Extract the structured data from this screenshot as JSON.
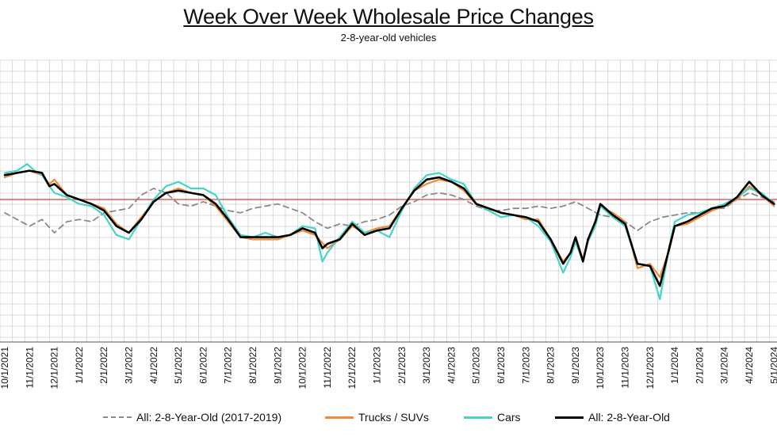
{
  "chart_data": {
    "type": "line",
    "title": "Week Over Week Wholesale Price Changes",
    "subtitle": "2-8-year-old vehicles",
    "xlabel": "",
    "ylabel": "",
    "x_tick_labels": [
      "10/1/2021",
      "11/1/2021",
      "12/1/2021",
      "1/1/2022",
      "2/1/2022",
      "3/1/2022",
      "4/1/2022",
      "5/1/2022",
      "6/1/2022",
      "7/1/2022",
      "8/1/2022",
      "9/1/2022",
      "10/1/2022",
      "11/1/2022",
      "12/1/2022",
      "1/1/2023",
      "2/1/2023",
      "3/1/2023",
      "4/1/2023",
      "5/1/2023",
      "6/1/2023",
      "7/1/2023",
      "8/1/2023",
      "9/1/2023",
      "10/1/2023",
      "11/1/2023",
      "12/1/2023",
      "1/1/2024",
      "2/1/2024",
      "3/1/2024",
      "4/1/2024",
      "5/1/2024"
    ],
    "y_tick_labels": [],
    "zero_line": true,
    "grid": true,
    "legend_position": "bottom",
    "series": [
      {
        "name": "All: 2-8-Year-Old (2017-2019)",
        "color": "#8a8a8a",
        "dash": "dashed",
        "points": [
          [
            0,
            -0.6
          ],
          [
            0.5,
            -0.9
          ],
          [
            1,
            -1.2
          ],
          [
            1.5,
            -0.9
          ],
          [
            2,
            -1.5
          ],
          [
            2.5,
            -1.0
          ],
          [
            3,
            -0.9
          ],
          [
            3.5,
            -1.0
          ],
          [
            4,
            -0.6
          ],
          [
            4.5,
            -0.5
          ],
          [
            5,
            -0.4
          ],
          [
            5.5,
            0.2
          ],
          [
            6,
            0.5
          ],
          [
            6.5,
            0.3
          ],
          [
            7,
            -0.2
          ],
          [
            7.5,
            -0.3
          ],
          [
            8,
            -0.1
          ],
          [
            8.5,
            -0.3
          ],
          [
            9,
            -0.5
          ],
          [
            9.5,
            -0.6
          ],
          [
            10,
            -0.4
          ],
          [
            10.5,
            -0.3
          ],
          [
            11,
            -0.2
          ],
          [
            11.5,
            -0.4
          ],
          [
            12,
            -0.6
          ],
          [
            12.5,
            -1.0
          ],
          [
            13,
            -1.3
          ],
          [
            13.5,
            -1.1
          ],
          [
            14,
            -1.2
          ],
          [
            14.5,
            -1.0
          ],
          [
            15,
            -0.9
          ],
          [
            15.5,
            -0.7
          ],
          [
            16,
            -0.3
          ],
          [
            16.5,
            -0.1
          ],
          [
            17,
            0.2
          ],
          [
            17.5,
            0.3
          ],
          [
            18,
            0.2
          ],
          [
            18.5,
            0.0
          ],
          [
            19,
            -0.3
          ],
          [
            19.5,
            -0.5
          ],
          [
            20,
            -0.5
          ],
          [
            20.5,
            -0.4
          ],
          [
            21,
            -0.4
          ],
          [
            21.5,
            -0.3
          ],
          [
            22,
            -0.4
          ],
          [
            22.5,
            -0.3
          ],
          [
            23,
            -0.1
          ],
          [
            23.5,
            -0.4
          ],
          [
            24,
            -0.7
          ],
          [
            24.5,
            -0.8
          ],
          [
            25,
            -1.0
          ],
          [
            25.5,
            -1.4
          ],
          [
            26,
            -1.0
          ],
          [
            26.5,
            -0.8
          ],
          [
            27,
            -0.7
          ],
          [
            27.5,
            -0.6
          ],
          [
            28,
            -0.6
          ],
          [
            28.5,
            -0.4
          ],
          [
            29,
            -0.4
          ],
          [
            29.5,
            0.0
          ],
          [
            30,
            0.3
          ],
          [
            30.5,
            0.1
          ],
          [
            31,
            -0.1
          ]
        ]
      },
      {
        "name": "Trucks / SUVs",
        "color": "#ee8a3a",
        "dash": "solid",
        "points": [
          [
            0,
            1.0
          ],
          [
            0.5,
            1.2
          ],
          [
            1,
            1.3
          ],
          [
            1.5,
            1.1
          ],
          [
            1.8,
            0.7
          ],
          [
            2,
            0.9
          ],
          [
            2.5,
            0.2
          ],
          [
            3,
            0.0
          ],
          [
            3.5,
            -0.2
          ],
          [
            4,
            -0.4
          ],
          [
            4.5,
            -1.1
          ],
          [
            5,
            -1.5
          ],
          [
            5.5,
            -0.8
          ],
          [
            6,
            -0.1
          ],
          [
            6.5,
            0.3
          ],
          [
            7,
            0.5
          ],
          [
            7.5,
            0.3
          ],
          [
            8,
            0.2
          ],
          [
            8.5,
            -0.3
          ],
          [
            9,
            -1.0
          ],
          [
            9.5,
            -1.7
          ],
          [
            10,
            -1.8
          ],
          [
            10.5,
            -1.8
          ],
          [
            11,
            -1.8
          ],
          [
            11.5,
            -1.6
          ],
          [
            12,
            -1.4
          ],
          [
            12.5,
            -1.6
          ],
          [
            13,
            -2.2
          ],
          [
            13.5,
            -1.8
          ],
          [
            14,
            -1.2
          ],
          [
            14.5,
            -1.5
          ],
          [
            15,
            -1.3
          ],
          [
            15.5,
            -1.2
          ],
          [
            16,
            -0.4
          ],
          [
            16.5,
            0.4
          ],
          [
            17,
            0.7
          ],
          [
            17.5,
            0.9
          ],
          [
            18,
            0.8
          ],
          [
            18.5,
            0.4
          ],
          [
            19,
            -0.2
          ],
          [
            19.5,
            -0.4
          ],
          [
            20,
            -0.6
          ],
          [
            20.5,
            -0.7
          ],
          [
            21,
            -0.9
          ],
          [
            21.5,
            -0.9
          ],
          [
            22,
            -1.8
          ],
          [
            22.5,
            -2.8
          ],
          [
            22.8,
            -2.4
          ],
          [
            23,
            -1.7
          ],
          [
            23.3,
            -2.7
          ],
          [
            23.5,
            -1.8
          ],
          [
            23.8,
            -1.0
          ],
          [
            24,
            -0.2
          ],
          [
            24.3,
            -0.5
          ],
          [
            24.5,
            -0.6
          ],
          [
            25,
            -1.0
          ],
          [
            25.5,
            -3.1
          ],
          [
            26,
            -2.9
          ],
          [
            26.4,
            -3.5
          ],
          [
            26.8,
            -2.2
          ],
          [
            27,
            -1.2
          ],
          [
            27.5,
            -1.1
          ],
          [
            28,
            -0.8
          ],
          [
            28.5,
            -0.5
          ],
          [
            29,
            -0.3
          ],
          [
            29.5,
            0.0
          ],
          [
            30,
            0.6
          ],
          [
            30.5,
            0.2
          ],
          [
            31,
            -0.3
          ]
        ]
      },
      {
        "name": "Cars",
        "color": "#49d3c6",
        "dash": "solid",
        "points": [
          [
            0,
            1.2
          ],
          [
            0.5,
            1.3
          ],
          [
            0.9,
            1.6
          ],
          [
            1.2,
            1.3
          ],
          [
            1.5,
            1.1
          ],
          [
            1.8,
            0.6
          ],
          [
            2,
            0.3
          ],
          [
            2.5,
            0.1
          ],
          [
            3,
            -0.2
          ],
          [
            3.5,
            -0.3
          ],
          [
            4,
            -0.7
          ],
          [
            4.5,
            -1.6
          ],
          [
            5,
            -1.8
          ],
          [
            5.5,
            -0.9
          ],
          [
            6,
            0.0
          ],
          [
            6.5,
            0.6
          ],
          [
            7,
            0.8
          ],
          [
            7.5,
            0.5
          ],
          [
            8,
            0.5
          ],
          [
            8.5,
            0.2
          ],
          [
            9,
            -0.8
          ],
          [
            9.5,
            -1.6
          ],
          [
            10,
            -1.7
          ],
          [
            10.5,
            -1.5
          ],
          [
            11,
            -1.7
          ],
          [
            11.5,
            -1.6
          ],
          [
            12,
            -1.2
          ],
          [
            12.5,
            -1.3
          ],
          [
            12.8,
            -2.8
          ],
          [
            13,
            -2.4
          ],
          [
            13.5,
            -1.7
          ],
          [
            14,
            -1.0
          ],
          [
            14.5,
            -1.5
          ],
          [
            15,
            -1.4
          ],
          [
            15.5,
            -1.7
          ],
          [
            16,
            -0.5
          ],
          [
            16.5,
            0.5
          ],
          [
            17,
            1.1
          ],
          [
            17.5,
            1.2
          ],
          [
            18,
            0.9
          ],
          [
            18.5,
            0.7
          ],
          [
            19,
            -0.2
          ],
          [
            19.5,
            -0.5
          ],
          [
            20,
            -0.8
          ],
          [
            20.5,
            -0.7
          ],
          [
            21,
            -0.8
          ],
          [
            21.5,
            -1.2
          ],
          [
            22,
            -1.9
          ],
          [
            22.5,
            -3.3
          ],
          [
            22.8,
            -2.6
          ],
          [
            23,
            -1.9
          ],
          [
            23.3,
            -2.8
          ],
          [
            23.5,
            -1.9
          ],
          [
            23.8,
            -1.2
          ],
          [
            24,
            -0.3
          ],
          [
            24.3,
            -0.6
          ],
          [
            24.5,
            -0.8
          ],
          [
            25,
            -1.2
          ],
          [
            25.5,
            -2.9
          ],
          [
            26,
            -3.0
          ],
          [
            26.4,
            -4.5
          ],
          [
            26.8,
            -2.0
          ],
          [
            27,
            -1.0
          ],
          [
            27.5,
            -0.7
          ],
          [
            28,
            -0.6
          ],
          [
            28.5,
            -0.4
          ],
          [
            29,
            -0.2
          ],
          [
            29.5,
            0.1
          ],
          [
            30,
            0.5
          ],
          [
            30.5,
            0.3
          ],
          [
            31,
            -0.2
          ]
        ]
      },
      {
        "name": "All: 2-8-Year-Old",
        "color": "#000000",
        "dash": "solid",
        "points": [
          [
            0,
            1.1
          ],
          [
            0.5,
            1.2
          ],
          [
            1,
            1.3
          ],
          [
            1.5,
            1.2
          ],
          [
            1.8,
            0.6
          ],
          [
            2,
            0.7
          ],
          [
            2.5,
            0.2
          ],
          [
            3,
            0.0
          ],
          [
            3.5,
            -0.2
          ],
          [
            4,
            -0.5
          ],
          [
            4.5,
            -1.2
          ],
          [
            5,
            -1.5
          ],
          [
            5.5,
            -0.9
          ],
          [
            6,
            -0.1
          ],
          [
            6.5,
            0.3
          ],
          [
            7,
            0.4
          ],
          [
            7.5,
            0.3
          ],
          [
            8,
            0.2
          ],
          [
            8.5,
            -0.2
          ],
          [
            9,
            -0.9
          ],
          [
            9.5,
            -1.7
          ],
          [
            10,
            -1.7
          ],
          [
            10.5,
            -1.7
          ],
          [
            11,
            -1.7
          ],
          [
            11.5,
            -1.6
          ],
          [
            12,
            -1.3
          ],
          [
            12.5,
            -1.5
          ],
          [
            12.8,
            -2.2
          ],
          [
            13,
            -2.0
          ],
          [
            13.5,
            -1.8
          ],
          [
            14,
            -1.1
          ],
          [
            14.5,
            -1.6
          ],
          [
            15,
            -1.4
          ],
          [
            15.5,
            -1.3
          ],
          [
            16,
            -0.4
          ],
          [
            16.5,
            0.4
          ],
          [
            17,
            0.9
          ],
          [
            17.5,
            1.0
          ],
          [
            18,
            0.8
          ],
          [
            18.5,
            0.5
          ],
          [
            19,
            -0.2
          ],
          [
            19.5,
            -0.4
          ],
          [
            20,
            -0.6
          ],
          [
            20.5,
            -0.7
          ],
          [
            21,
            -0.8
          ],
          [
            21.5,
            -1.0
          ],
          [
            22,
            -1.8
          ],
          [
            22.5,
            -2.9
          ],
          [
            22.8,
            -2.4
          ],
          [
            23,
            -1.7
          ],
          [
            23.3,
            -2.8
          ],
          [
            23.5,
            -1.8
          ],
          [
            23.8,
            -1.0
          ],
          [
            24,
            -0.2
          ],
          [
            24.3,
            -0.5
          ],
          [
            24.5,
            -0.7
          ],
          [
            25,
            -1.1
          ],
          [
            25.5,
            -2.9
          ],
          [
            26,
            -3.0
          ],
          [
            26.4,
            -3.9
          ],
          [
            26.8,
            -2.1
          ],
          [
            27,
            -1.2
          ],
          [
            27.5,
            -1.0
          ],
          [
            28,
            -0.7
          ],
          [
            28.5,
            -0.4
          ],
          [
            29,
            -0.3
          ],
          [
            29.5,
            0.1
          ],
          [
            30,
            0.8
          ],
          [
            30.5,
            0.2
          ],
          [
            31,
            -0.2
          ]
        ]
      }
    ]
  },
  "legend": {
    "items": [
      {
        "label": "All: 2-8-Year-Old (2017-2019)",
        "color": "#8a8a8a",
        "style": "dashed"
      },
      {
        "label": "Trucks / SUVs",
        "color": "#ee8a3a",
        "style": "solid"
      },
      {
        "label": "Cars",
        "color": "#49d3c6",
        "style": "solid"
      },
      {
        "label": "All: 2-8-Year-Old",
        "color": "#000000",
        "style": "solid"
      }
    ]
  },
  "colors": {
    "zero_line": "#e06050",
    "grid": "#d0d0d0",
    "axis": "#555555"
  }
}
